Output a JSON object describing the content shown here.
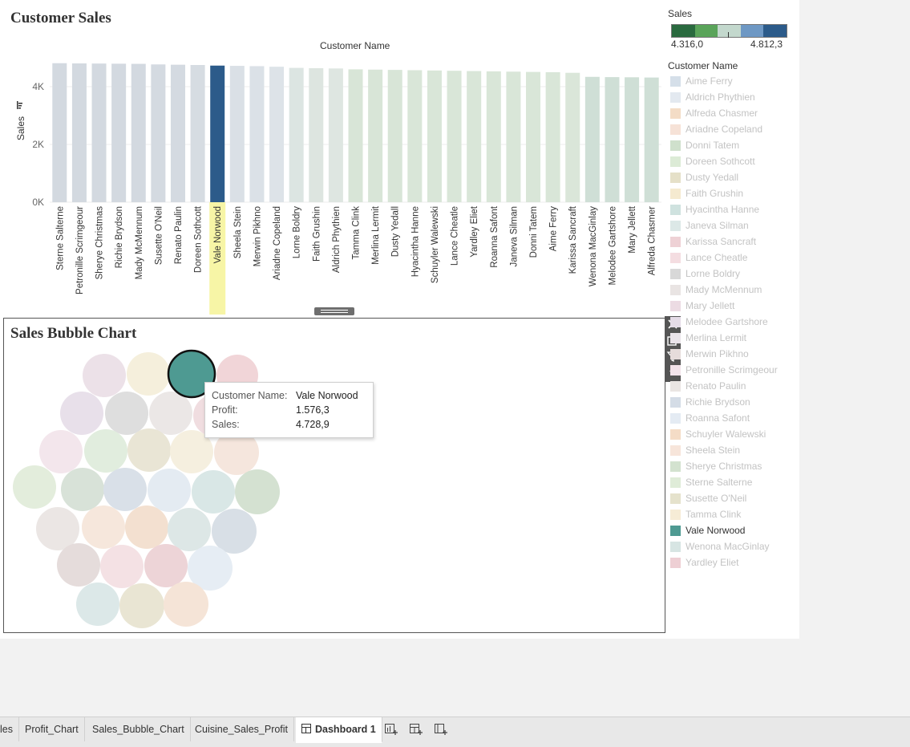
{
  "dashboard": {
    "title": "Customer Sales",
    "bubble_title": "Sales Bubble Chart",
    "column_header": "Customer Name"
  },
  "chart_data": [
    {
      "type": "bar",
      "title": "Customer Sales",
      "xlabel": "Customer Name",
      "ylabel": "Sales",
      "ylim": [
        0,
        5000
      ],
      "yticks": [
        "0K",
        "2K",
        "4K"
      ],
      "grid": true,
      "categories": [
        "Sterne Salterne",
        "Petronille Scrimgeour",
        "Sherye Christmas",
        "Richie Brydson",
        "Mady McMennum",
        "Susette O'Neil",
        "Renato Paulin",
        "Doreen Sothcott",
        "Vale Norwood",
        "Sheela Stein",
        "Merwin Pikhno",
        "Ariadne Copeland",
        "Lorne Boldry",
        "Faith Grushin",
        "Aldrich Phythien",
        "Tamma Clink",
        "Merlina Lermit",
        "Dusty Yedall",
        "Hyacintha Hanne",
        "Schuyler Walewski",
        "Lance Cheatle",
        "Yardley Eliet",
        "Roanna Safont",
        "Janeva Silman",
        "Donni Tatem",
        "Aime Ferry",
        "Karissa Sancraft",
        "Wenona MacGinlay",
        "Melodee Gartshore",
        "Mary Jellett",
        "Alfreda Chasmer"
      ],
      "values": [
        4812.3,
        4805,
        4800,
        4795,
        4790,
        4770,
        4760,
        4750,
        4728.9,
        4720,
        4710,
        4690,
        4650,
        4640,
        4630,
        4600,
        4590,
        4580,
        4570,
        4560,
        4550,
        4540,
        4530,
        4520,
        4510,
        4500,
        4480,
        4340,
        4330,
        4325,
        4316.0
      ],
      "selected": "Vale Norwood",
      "colors": [
        "#d3d9e0",
        "#d3d9e0",
        "#d3d9e0",
        "#d3d9e0",
        "#d3d9e0",
        "#d4dae1",
        "#d4dae1",
        "#d6dce2",
        "#2c5b8a",
        "#dae0e6",
        "#dbe1e7",
        "#dde3e8",
        "#dce5e2",
        "#dde5e0",
        "#dee6e1",
        "#d8e5d7",
        "#d8e5d7",
        "#d8e5d7",
        "#d9e6d8",
        "#d9e6d8",
        "#d9e6d8",
        "#d9e6d8",
        "#d9e6d8",
        "#d9e6d8",
        "#d9e6d8",
        "#d9e6d8",
        "#dae6d9",
        "#cfdfd6",
        "#cfdfd6",
        "#cfdfd6",
        "#cfdfd6"
      ]
    },
    {
      "type": "scatter",
      "title": "Sales Bubble Chart",
      "bubbles": [
        {
          "name": "Vale Norwood",
          "color": "#4e9a92",
          "selected": true
        },
        {
          "name": "Yardley Eliet",
          "color": "#f1d5d8"
        },
        {
          "name": "Mary Jellett",
          "color": "#ece1e8"
        },
        {
          "name": "Tamma Clink",
          "color": "#f5efdc"
        },
        {
          "name": "Melodee Gartshore",
          "color": "#e8e0ea"
        },
        {
          "name": "Lorne Boldry",
          "color": "#dedede"
        },
        {
          "name": "Mady McMennum",
          "color": "#ebe7e6"
        },
        {
          "name": "Karissa Sancraft",
          "color": "#f0dde0"
        },
        {
          "name": "Petronille Scrimgeour",
          "color": "#f3e6ec"
        },
        {
          "name": "Doreen Sothcott",
          "color": "#e1edde"
        },
        {
          "name": "Susette O'Neil",
          "color": "#e9e5d5"
        },
        {
          "name": "Faith Grushin",
          "color": "#f5efdf"
        },
        {
          "name": "Ariadne Copeland",
          "color": "#f5e6dd"
        },
        {
          "name": "Sterne Salterne",
          "color": "#e3eddc"
        },
        {
          "name": "Sherye Christmas",
          "color": "#d8e2d8"
        },
        {
          "name": "Richie Brydson",
          "color": "#d9e0e8"
        },
        {
          "name": "Roanna Safont",
          "color": "#e4ebf2"
        },
        {
          "name": "Hyacintha Hanne",
          "color": "#d9e7e6"
        },
        {
          "name": "Donni Tatem",
          "color": "#d4e1d1"
        },
        {
          "name": "Renato Paulin",
          "color": "#ebe6e4"
        },
        {
          "name": "Schuyler Walewski",
          "color": "#f6e7dc"
        },
        {
          "name": "Alfreda Chasmer",
          "color": "#f3e0d0"
        },
        {
          "name": "Wenona MacGinlay",
          "color": "#dde7e6"
        },
        {
          "name": "Richie Brydson",
          "color": "#d8dfe6"
        },
        {
          "name": "Merwin Pikhno",
          "color": "#e5dcdb"
        },
        {
          "name": "Lance Cheatle",
          "color": "#f4e1e4"
        },
        {
          "name": "Karissa Sancraft",
          "color": "#edd4d7"
        },
        {
          "name": "Roanna Safont",
          "color": "#e6edf4"
        },
        {
          "name": "Janeva Silman",
          "color": "#dce8e8"
        },
        {
          "name": "Dusty Yedall",
          "color": "#e9e5d3"
        },
        {
          "name": "Alfreda Chasmer",
          "color": "#f5e4d7"
        }
      ]
    }
  ],
  "tooltip": {
    "rows": [
      {
        "key": "Customer Name:",
        "value": "Vale Norwood"
      },
      {
        "key": "Profit:",
        "value": "1.576,3"
      },
      {
        "key": "Sales:",
        "value": "4.728,9"
      }
    ]
  },
  "legend": {
    "sales_title": "Sales",
    "sales_min": "4.316,0",
    "sales_max": "4.812,3",
    "ramp_colors": [
      "#2a6a3f",
      "#5aa45a",
      "#c3d8cd",
      "#6e98c4",
      "#2c5b8a"
    ],
    "customer_title": "Customer Name",
    "items": [
      {
        "label": "Aime Ferry",
        "color": "#d5dfe9"
      },
      {
        "label": "Aldrich Phythien",
        "color": "#e3e9f0"
      },
      {
        "label": "Alfreda Chasmer",
        "color": "#f3dcc6"
      },
      {
        "label": "Ariadne Copeland",
        "color": "#f6e2d7"
      },
      {
        "label": "Donni Tatem",
        "color": "#cfe0cc"
      },
      {
        "label": "Doreen Sothcott",
        "color": "#dcebd6"
      },
      {
        "label": "Dusty Yedall",
        "color": "#e5e0c8"
      },
      {
        "label": "Faith Grushin",
        "color": "#f5ead0"
      },
      {
        "label": "Hyacintha Hanne",
        "color": "#cfe2df"
      },
      {
        "label": "Janeva Silman",
        "color": "#dce8e7"
      },
      {
        "label": "Karissa Sancraft",
        "color": "#eed1d5"
      },
      {
        "label": "Lance Cheatle",
        "color": "#f4dde1"
      },
      {
        "label": "Lorne Boldry",
        "color": "#d8d8d8"
      },
      {
        "label": "Mady McMennum",
        "color": "#e9e4e3"
      },
      {
        "label": "Mary Jellett",
        "color": "#ecdbe3"
      },
      {
        "label": "Melodee Gartshore",
        "color": "#e5dbe7"
      },
      {
        "label": "Merlina Lermit",
        "color": "#eae4ea"
      },
      {
        "label": "Merwin Pikhno",
        "color": "#e6dcdb"
      },
      {
        "label": "Petronille Scrimgeour",
        "color": "#f2e3ea"
      },
      {
        "label": "Renato Paulin",
        "color": "#eae5e3"
      },
      {
        "label": "Richie Brydson",
        "color": "#d4dce6"
      },
      {
        "label": "Roanna Safont",
        "color": "#e4ebf3"
      },
      {
        "label": "Schuyler Walewski",
        "color": "#f4dcc6"
      },
      {
        "label": "Sheela Stein",
        "color": "#f7e5da"
      },
      {
        "label": "Sherye Christmas",
        "color": "#d3e2cf"
      },
      {
        "label": "Sterne Salterne",
        "color": "#dfecd8"
      },
      {
        "label": "Susette O'Neil",
        "color": "#e5e2cc"
      },
      {
        "label": "Tamma Clink",
        "color": "#f6ecd6"
      },
      {
        "label": "Vale Norwood",
        "color": "#4e9a92",
        "active": true
      },
      {
        "label": "Wenona MacGinlay",
        "color": "#d7e5e3"
      },
      {
        "label": "Yardley Eliet",
        "color": "#eecfd4"
      }
    ]
  },
  "tabs": [
    {
      "label": "les"
    },
    {
      "label": "Profit_Chart"
    },
    {
      "label": "Sales_Bubble_Chart"
    },
    {
      "label": "Cuisine_Sales_Profit"
    },
    {
      "label": "Dashboard 1",
      "active": true
    }
  ],
  "tab_icons": [
    "new-worksheet-icon",
    "new-dashboard-icon",
    "new-story-icon"
  ],
  "toolbar_icons": [
    "close-icon",
    "popout-icon",
    "filter-icon",
    "more-options-icon"
  ]
}
